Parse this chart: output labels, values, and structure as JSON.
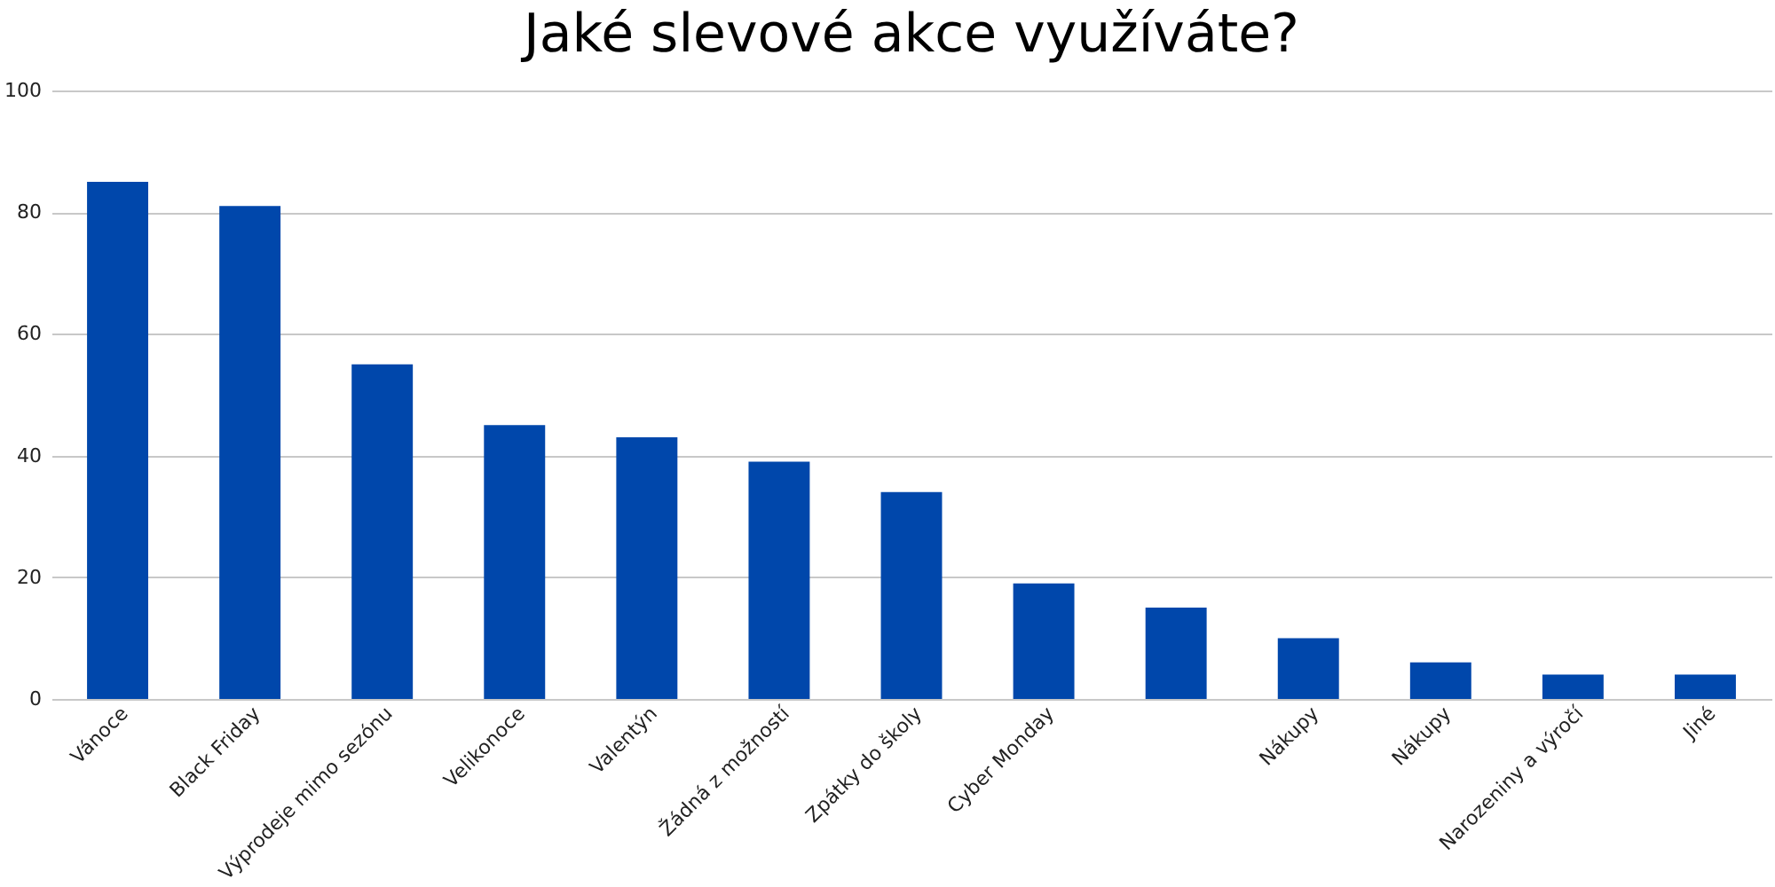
{
  "chart_data": {
    "type": "bar",
    "title": "Jaké slevové akce využíváte?",
    "categories": [
      "Vánoce",
      "Black Friday",
      "Výprodeje mimo sezónu",
      "Velikonoce",
      "Valentýn",
      "Žádná z možností",
      "Zpátky do školy",
      "Cyber Monday",
      null,
      "Nákupy",
      "Nákupy",
      "Narozeniny a výročí",
      "Jiné"
    ],
    "values": [
      85,
      81,
      55,
      45,
      43,
      39,
      34,
      19,
      15,
      10,
      6,
      4,
      4
    ],
    "color": "#0047ab",
    "ylim": [
      0,
      100
    ],
    "yticks": [
      0,
      20,
      40,
      60,
      80,
      100
    ],
    "grid": "y"
  }
}
